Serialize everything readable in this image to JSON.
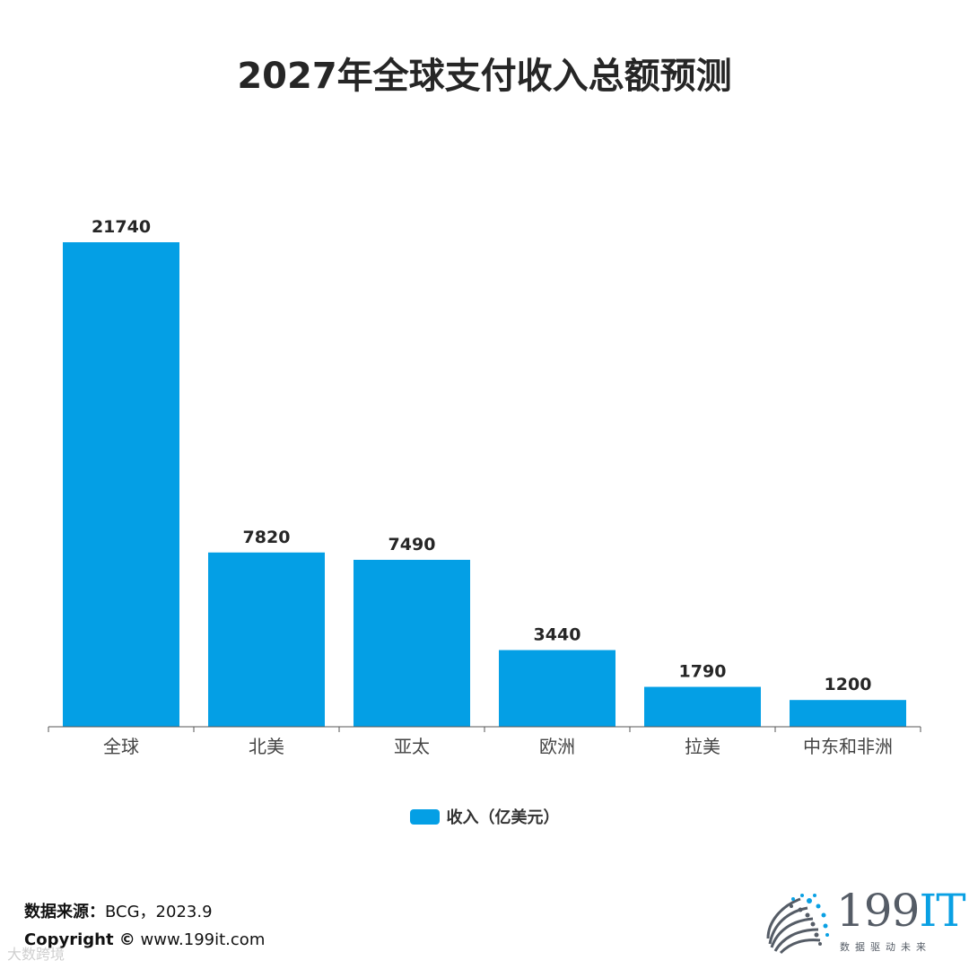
{
  "colors": {
    "bar": "#049fe5",
    "axis": "#555555",
    "text": "#262626",
    "logo_accent": "#0aa0e3",
    "logo_gray": "#555c66"
  },
  "chart_data": {
    "type": "bar",
    "title": "2027年全球支付收入总额预测",
    "categories": [
      "全球",
      "北美",
      "亚太",
      "欧洲",
      "拉美",
      "中东和非洲"
    ],
    "series": [
      {
        "name": "收入（亿美元）",
        "values": [
          21740,
          7820,
          7490,
          3440,
          1790,
          1200
        ]
      }
    ],
    "ylim": [
      0,
      21740
    ],
    "grid": false,
    "legend": "bottom"
  },
  "footer": {
    "source_key": "数据来源：",
    "source_value": "BCG，2023.9",
    "copyright_key": "Copyright ©",
    "copyright_value": " www.199it.com",
    "watermark": "大数跨境"
  },
  "logo": {
    "number": "199",
    "accent": "IT",
    "tagline": "数据驱动未来",
    "icon": "dot-cluster-logo-icon"
  }
}
